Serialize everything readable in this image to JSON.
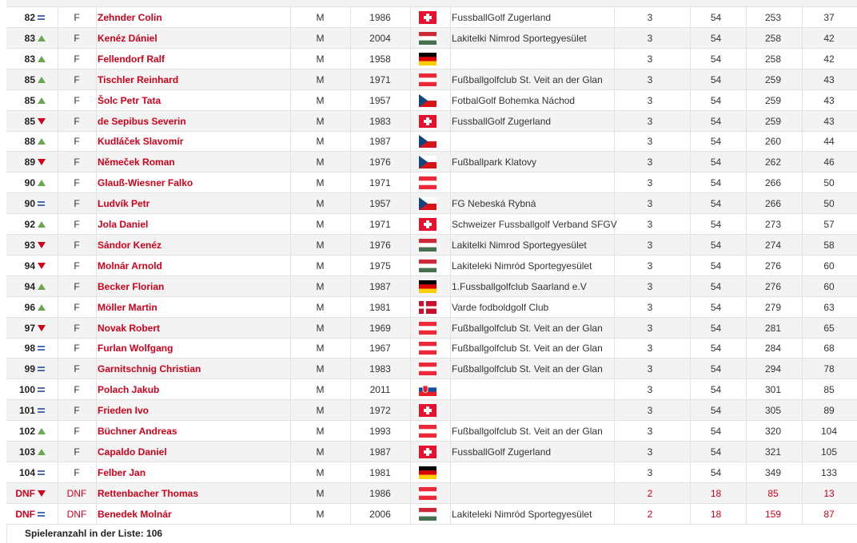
{
  "table": {
    "rows": [
      {
        "rank": "82",
        "trend": "same",
        "category": "F",
        "name": "Zehnder Colin",
        "gender": "M",
        "year": 1986,
        "flag": "ch",
        "club": "FussballGolf Zugerland",
        "rounds": 3,
        "holes": 54,
        "score": 253,
        "par": 37
      },
      {
        "rank": "83",
        "trend": "up",
        "category": "F",
        "name": "Kenéz Dániel",
        "gender": "M",
        "year": 2004,
        "flag": "hu",
        "club": "Lakitelki Nimrod Sportegyesület",
        "rounds": 3,
        "holes": 54,
        "score": 258,
        "par": 42
      },
      {
        "rank": "83",
        "trend": "up",
        "category": "F",
        "name": "Fellendorf Ralf",
        "gender": "M",
        "year": 1958,
        "flag": "de",
        "club": null,
        "rounds": 3,
        "holes": 54,
        "score": 258,
        "par": 42
      },
      {
        "rank": "85",
        "trend": "up",
        "category": "F",
        "name": "Tischler Reinhard",
        "gender": "M",
        "year": 1971,
        "flag": "at",
        "club": "Fußballgolfclub St. Veit an der Glan",
        "rounds": 3,
        "holes": 54,
        "score": 259,
        "par": 43
      },
      {
        "rank": "85",
        "trend": "up",
        "category": "F",
        "name": "Šolc Petr Tata",
        "gender": "M",
        "year": 1957,
        "flag": "cz",
        "club": "FotbalGolf Bohemka Náchod",
        "rounds": 3,
        "holes": 54,
        "score": 259,
        "par": 43
      },
      {
        "rank": "85",
        "trend": "down",
        "category": "F",
        "name": "de Sepibus Severin",
        "gender": "M",
        "year": 1983,
        "flag": "ch",
        "club": "FussballGolf Zugerland",
        "rounds": 3,
        "holes": 54,
        "score": 259,
        "par": 43
      },
      {
        "rank": "88",
        "trend": "up",
        "category": "F",
        "name": "Kudláček Slavomír",
        "gender": "M",
        "year": 1987,
        "flag": "cz",
        "club": null,
        "rounds": 3,
        "holes": 54,
        "score": 260,
        "par": 44
      },
      {
        "rank": "89",
        "trend": "down",
        "category": "F",
        "name": "Němeček Roman",
        "gender": "M",
        "year": 1976,
        "flag": "cz",
        "club": "Fußballpark Klatovy",
        "rounds": 3,
        "holes": 54,
        "score": 262,
        "par": 46
      },
      {
        "rank": "90",
        "trend": "up",
        "category": "F",
        "name": "Glauß-Wiesner Falko",
        "gender": "M",
        "year": 1971,
        "flag": "at",
        "club": null,
        "rounds": 3,
        "holes": 54,
        "score": 266,
        "par": 50
      },
      {
        "rank": "90",
        "trend": "same",
        "category": "F",
        "name": "Ludvík Petr",
        "gender": "M",
        "year": 1957,
        "flag": "cz",
        "club": "FG Nebeská Rybná",
        "rounds": 3,
        "holes": 54,
        "score": 266,
        "par": 50
      },
      {
        "rank": "92",
        "trend": "up",
        "category": "F",
        "name": "Jola Daniel",
        "gender": "M",
        "year": 1971,
        "flag": "ch",
        "club": "Schweizer Fussballgolf Verband SFGV",
        "rounds": 3,
        "holes": 54,
        "score": 273,
        "par": 57
      },
      {
        "rank": "93",
        "trend": "down",
        "category": "F",
        "name": "Sándor Kenéz",
        "gender": "M",
        "year": 1976,
        "flag": "hu",
        "club": "Lakitelki Nimrod Sportegyesület",
        "rounds": 3,
        "holes": 54,
        "score": 274,
        "par": 58
      },
      {
        "rank": "94",
        "trend": "down",
        "category": "F",
        "name": "Molnár Arnold",
        "gender": "M",
        "year": 1975,
        "flag": "hu",
        "club": "Lakiteleki Nimród Sportegyesület",
        "rounds": 3,
        "holes": 54,
        "score": 276,
        "par": 60
      },
      {
        "rank": "94",
        "trend": "up",
        "category": "F",
        "name": "Becker Florian",
        "gender": "M",
        "year": 1987,
        "flag": "de",
        "club": "1.Fussballgolfclub Saarland e.V",
        "rounds": 3,
        "holes": 54,
        "score": 276,
        "par": 60
      },
      {
        "rank": "96",
        "trend": "up",
        "category": "F",
        "name": "Möller Martin",
        "gender": "M",
        "year": 1981,
        "flag": "dk",
        "club": "Varde fodboldgolf Club",
        "rounds": 3,
        "holes": 54,
        "score": 279,
        "par": 63
      },
      {
        "rank": "97",
        "trend": "down",
        "category": "F",
        "name": "Novak Robert",
        "gender": "M",
        "year": 1969,
        "flag": "at",
        "club": "Fußballgolfclub St. Veit an der Glan",
        "rounds": 3,
        "holes": 54,
        "score": 281,
        "par": 65
      },
      {
        "rank": "98",
        "trend": "same",
        "category": "F",
        "name": "Furlan Wolfgang",
        "gender": "M",
        "year": 1967,
        "flag": "at",
        "club": "Fußballgolfclub St. Veit an der Glan",
        "rounds": 3,
        "holes": 54,
        "score": 284,
        "par": 68
      },
      {
        "rank": "99",
        "trend": "same",
        "category": "F",
        "name": "Garnitschnig Christian",
        "gender": "M",
        "year": 1983,
        "flag": "at",
        "club": "Fußballgolfclub St. Veit an der Glan",
        "rounds": 3,
        "holes": 54,
        "score": 294,
        "par": 78
      },
      {
        "rank": "100",
        "trend": "same",
        "category": "F",
        "name": "Polach Jakub",
        "gender": "M",
        "year": 2011,
        "flag": "sk",
        "club": null,
        "rounds": 3,
        "holes": 54,
        "score": 301,
        "par": 85
      },
      {
        "rank": "101",
        "trend": "same",
        "category": "F",
        "name": "Frieden Ivo",
        "gender": "M",
        "year": 1972,
        "flag": "ch",
        "club": null,
        "rounds": 3,
        "holes": 54,
        "score": 305,
        "par": 89
      },
      {
        "rank": "102",
        "trend": "up",
        "category": "F",
        "name": "Büchner Andreas",
        "gender": "M",
        "year": 1993,
        "flag": "at",
        "club": "Fußballgolfclub St. Veit an der Glan",
        "rounds": 3,
        "holes": 54,
        "score": 320,
        "par": 104
      },
      {
        "rank": "103",
        "trend": "up",
        "category": "F",
        "name": "Capaldo Daniel",
        "gender": "M",
        "year": 1987,
        "flag": "ch",
        "club": "FussballGolf Zugerland",
        "rounds": 3,
        "holes": 54,
        "score": 321,
        "par": 105
      },
      {
        "rank": "104",
        "trend": "same",
        "category": "F",
        "name": "Felber Jan",
        "gender": "M",
        "year": 1981,
        "flag": "de",
        "club": null,
        "rounds": 3,
        "holes": 54,
        "score": 349,
        "par": 133
      },
      {
        "rank": "DNF",
        "trend": "down",
        "category": "DNF",
        "name": "Rettenbacher Thomas",
        "gender": "M",
        "year": 1986,
        "flag": "at",
        "club": null,
        "rounds": 2,
        "holes": 18,
        "score": 85,
        "par": 13,
        "color": "#d0021b"
      },
      {
        "rank": "DNF",
        "trend": "same",
        "category": "DNF",
        "name": "Benedek Molnár",
        "gender": "M",
        "year": 2006,
        "flag": "hu",
        "club": "Lakiteleki Nimród Sportegyesület",
        "rounds": 2,
        "holes": 18,
        "score": 159,
        "par": 87,
        "color": "#d0021b"
      }
    ]
  },
  "footer": "Spieleranzahl in der Liste: 106"
}
